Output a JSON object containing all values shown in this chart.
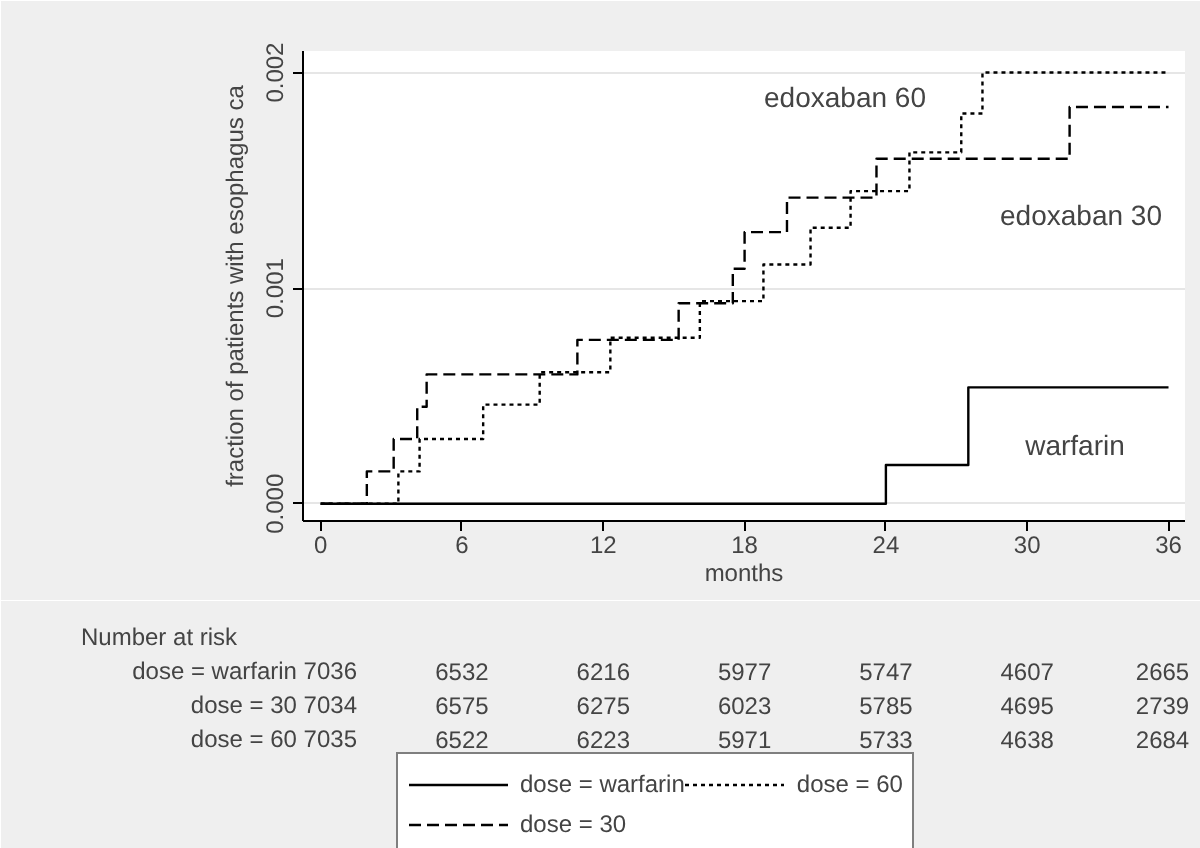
{
  "chart_data": {
    "type": "step",
    "ylabel": "fraction of patients with esophagus ca",
    "xlabel": "months",
    "xlim": [
      -0.75,
      36.7
    ],
    "xticks": [
      0,
      6,
      12,
      18,
      24,
      30,
      36
    ],
    "ylim": [
      -8e-05,
      0.0021
    ],
    "yticks": [
      {
        "value": 0,
        "label": "0.000"
      },
      {
        "value": 0.001,
        "label": "0.001"
      },
      {
        "value": 0.002,
        "label": "0.002"
      }
    ],
    "grid": "y",
    "legend": "bottom",
    "series": [
      {
        "name": "dose = warfarin",
        "color": "#000000",
        "line_style": "solid",
        "x": [
          0,
          24,
          27.5,
          36
        ],
        "values": [
          0,
          0.00018,
          0.00054,
          0.00054
        ]
      },
      {
        "name": "dose = 30",
        "color": "#000000",
        "line_style": "dashed",
        "x": [
          0,
          1.96,
          3.1,
          4.1,
          4.5,
          10.9,
          15.2,
          17.5,
          18.0,
          19.8,
          23.6,
          31.8,
          36
        ],
        "values": [
          0,
          0.00015,
          0.0003,
          0.00045,
          0.0006,
          0.00076,
          0.00093,
          0.00109,
          0.00126,
          0.00142,
          0.0016,
          0.00184,
          0.00184
        ]
      },
      {
        "name": "dose = 60",
        "color": "#000000",
        "line_style": "dotted",
        "x": [
          0,
          3.3,
          4.2,
          6.9,
          9.3,
          12.3,
          16.1,
          18.8,
          20.8,
          22.5,
          25.0,
          27.2,
          28.1,
          36
        ],
        "values": [
          0,
          0.00015,
          0.0003,
          0.00046,
          0.00061,
          0.00077,
          0.00094,
          0.00111,
          0.00128,
          0.00145,
          0.00163,
          0.00181,
          0.002,
          0.002
        ]
      }
    ],
    "annotations": [
      "edoxaban 60",
      "edoxaban 30",
      "warfarin",
      "Number at risk",
      "dose = warfarin 7036",
      "6532",
      "6216",
      "5977",
      "5747",
      "4607",
      "2665",
      "dose = 30 7034",
      "6575",
      "6275",
      "6023",
      "5785",
      "4695",
      "2739",
      "dose = 60 7035",
      "6522",
      "6223",
      "5971",
      "5733",
      "4638",
      "2684"
    ]
  }
}
